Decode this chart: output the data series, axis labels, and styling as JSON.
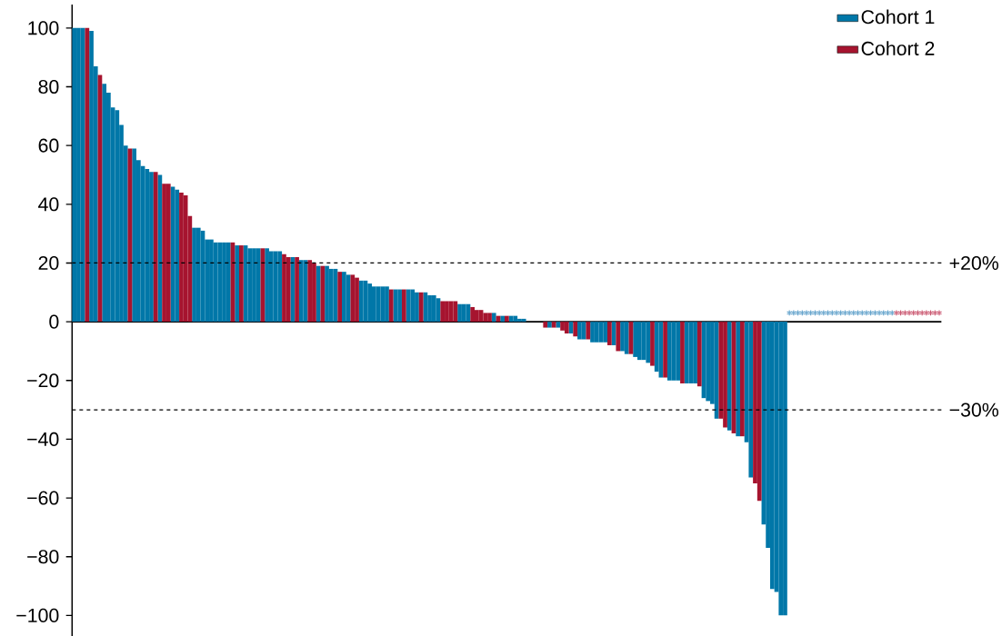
{
  "chart_data": {
    "type": "bar",
    "categories": [
      null,
      null,
      null,
      null,
      null,
      null,
      null,
      null,
      null,
      null,
      null,
      null,
      null,
      null,
      null,
      null,
      null,
      null,
      null,
      null,
      null,
      null,
      null,
      null,
      null,
      null,
      null,
      null,
      null,
      null,
      null,
      null,
      null,
      null,
      null,
      null,
      null,
      null,
      null,
      null,
      null,
      null,
      null,
      null,
      null,
      null,
      null,
      null,
      null,
      null,
      null,
      null,
      null,
      null,
      null,
      null,
      null,
      null,
      null,
      null,
      null,
      null,
      null,
      null,
      null,
      null,
      null,
      null,
      null,
      null,
      null,
      null,
      null,
      null,
      null,
      null,
      null,
      null,
      null,
      null,
      null,
      null,
      null,
      null,
      null,
      null,
      null,
      null,
      null,
      null,
      null,
      null,
      null,
      null,
      null,
      null,
      null,
      null,
      null,
      null,
      null,
      null,
      null,
      null,
      null,
      null,
      null,
      null,
      null,
      null,
      null,
      null,
      null,
      null,
      null,
      null,
      null,
      null,
      null,
      null,
      null,
      null,
      null,
      null,
      null,
      null,
      null,
      null,
      null,
      null,
      null,
      null,
      null,
      null,
      null,
      null,
      null,
      null,
      null,
      null,
      null,
      null,
      null,
      null,
      null,
      null,
      null,
      null,
      null,
      null,
      null,
      null,
      null,
      null,
      null,
      null,
      null,
      null,
      null,
      null,
      null,
      null,
      null,
      null,
      null,
      null,
      null,
      null,
      null,
      null,
      null,
      null,
      null,
      null,
      null,
      null,
      null,
      null,
      null,
      null,
      null,
      null,
      null,
      null,
      null,
      null,
      null,
      null,
      null,
      null,
      null,
      null,
      null,
      null,
      null,
      null,
      null,
      null,
      null,
      null,
      null,
      null,
      null
    ],
    "series": [
      {
        "name": "Cohort 1",
        "color": "#0077a8",
        "values": [
          100,
          100,
          100,
          null,
          99,
          87,
          null,
          81,
          78,
          73,
          72,
          67,
          60,
          null,
          59,
          55,
          53,
          52,
          51,
          null,
          50,
          null,
          null,
          46,
          45,
          null,
          null,
          null,
          32,
          32,
          31,
          28,
          28,
          27,
          27,
          27,
          27,
          null,
          26,
          null,
          26,
          25,
          25,
          25,
          null,
          25,
          24,
          24,
          24,
          null,
          null,
          22,
          null,
          21,
          21,
          null,
          null,
          19,
          null,
          19,
          18,
          18,
          null,
          17,
          16,
          null,
          null,
          14,
          14,
          13,
          12,
          12,
          12,
          12,
          null,
          11,
          11,
          null,
          11,
          11,
          10,
          null,
          10,
          9,
          9,
          8,
          null,
          null,
          null,
          null,
          6,
          6,
          6,
          null,
          null,
          null,
          null,
          null,
          3,
          null,
          2,
          null,
          2,
          2,
          1,
          1,
          0,
          0,
          0,
          0,
          null,
          -2,
          null,
          -2,
          null,
          null,
          -4,
          null,
          -6,
          -6,
          null,
          -7,
          -7,
          -7,
          -7,
          null,
          -8,
          null,
          -10,
          -11,
          null,
          -12,
          -13,
          -13,
          -14,
          null,
          -17,
          -19,
          null,
          -20,
          -20,
          -20,
          null,
          -21,
          -21,
          -21,
          null,
          -26,
          -27,
          -28,
          -33,
          null,
          null,
          -37,
          null,
          -39,
          null,
          -41,
          -53,
          null,
          null,
          -69,
          -77,
          -91,
          -92,
          -100,
          -100,
          null,
          null,
          null,
          null,
          null,
          null,
          null,
          null,
          null,
          null,
          null,
          null,
          null,
          null,
          null,
          null,
          null,
          null,
          null,
          null,
          null,
          null,
          null,
          null,
          null,
          null,
          null,
          null,
          null,
          null,
          null,
          null,
          null,
          null,
          null,
          null
        ]
      },
      {
        "name": "Cohort 2",
        "color": "#a6142f",
        "values": [
          null,
          null,
          null,
          100,
          null,
          null,
          84,
          null,
          null,
          null,
          null,
          null,
          null,
          59,
          null,
          null,
          null,
          null,
          null,
          51,
          null,
          47,
          47,
          null,
          null,
          44,
          43,
          36,
          null,
          null,
          null,
          null,
          null,
          null,
          null,
          null,
          null,
          27,
          null,
          26,
          null,
          null,
          null,
          null,
          25,
          null,
          null,
          null,
          null,
          23,
          22,
          null,
          22,
          null,
          null,
          21,
          20,
          null,
          19,
          null,
          null,
          null,
          17,
          null,
          null,
          16,
          15,
          null,
          null,
          null,
          null,
          null,
          null,
          null,
          11,
          null,
          null,
          11,
          null,
          null,
          null,
          10,
          null,
          null,
          null,
          null,
          7,
          7,
          7,
          7,
          null,
          null,
          null,
          5,
          4,
          4,
          3,
          3,
          null,
          2,
          null,
          2,
          null,
          null,
          null,
          null,
          null,
          null,
          null,
          null,
          -2,
          null,
          -2,
          null,
          -3,
          -4,
          null,
          -5,
          null,
          null,
          -6,
          null,
          null,
          null,
          null,
          -8,
          null,
          -10,
          null,
          null,
          -11,
          null,
          null,
          null,
          null,
          -15,
          null,
          null,
          -19,
          null,
          null,
          null,
          -21,
          null,
          null,
          null,
          -22,
          null,
          null,
          null,
          null,
          -33,
          -36,
          null,
          -38,
          null,
          -39,
          null,
          null,
          -55,
          -61,
          null,
          null,
          null,
          null,
          null,
          null,
          null,
          null,
          null,
          null,
          null,
          null,
          null,
          null,
          null,
          null,
          null,
          null,
          null,
          null,
          null,
          null,
          null,
          null,
          null,
          null,
          null,
          null,
          null,
          null,
          null,
          null,
          null,
          null,
          null,
          null,
          null,
          null,
          null,
          null,
          null,
          null
        ]
      },
      {
        "type": "scatter",
        "color": "#5b9ec9",
        "values": [
          null,
          null,
          null,
          null,
          null,
          null,
          null,
          null,
          null,
          null,
          null,
          null,
          null,
          null,
          null,
          null,
          null,
          null,
          null,
          null,
          null,
          null,
          null,
          null,
          null,
          null,
          null,
          null,
          null,
          null,
          null,
          null,
          null,
          null,
          null,
          null,
          null,
          null,
          null,
          null,
          null,
          null,
          null,
          null,
          null,
          null,
          null,
          null,
          null,
          null,
          null,
          null,
          null,
          null,
          null,
          null,
          null,
          null,
          null,
          null,
          null,
          null,
          null,
          null,
          null,
          null,
          null,
          null,
          null,
          null,
          null,
          null,
          null,
          null,
          null,
          null,
          null,
          null,
          null,
          null,
          null,
          null,
          null,
          null,
          null,
          null,
          null,
          null,
          null,
          null,
          null,
          null,
          null,
          null,
          null,
          null,
          null,
          null,
          null,
          null,
          null,
          null,
          null,
          null,
          null,
          null,
          null,
          null,
          null,
          null,
          null,
          null,
          null,
          null,
          null,
          null,
          null,
          null,
          null,
          null,
          null,
          null,
          null,
          null,
          null,
          null,
          null,
          null,
          null,
          null,
          null,
          null,
          null,
          null,
          null,
          null,
          null,
          null,
          null,
          null,
          null,
          null,
          null,
          null,
          null,
          null,
          null,
          null,
          null,
          null,
          null,
          null,
          null,
          null,
          null,
          null,
          null,
          null,
          null,
          null,
          null,
          null,
          null,
          null,
          null,
          null,
          null,
          3,
          3,
          3,
          3,
          3,
          3,
          3,
          3,
          3,
          3,
          3,
          3,
          3,
          3,
          3,
          3,
          3,
          3,
          3,
          3,
          3,
          3,
          3,
          3,
          3,
          null,
          null,
          null,
          null,
          null,
          null,
          null,
          null,
          null,
          null,
          null
        ]
      },
      {
        "type": "scatter",
        "color": "#c8506a",
        "values": [
          null,
          null,
          null,
          null,
          null,
          null,
          null,
          null,
          null,
          null,
          null,
          null,
          null,
          null,
          null,
          null,
          null,
          null,
          null,
          null,
          null,
          null,
          null,
          null,
          null,
          null,
          null,
          null,
          null,
          null,
          null,
          null,
          null,
          null,
          null,
          null,
          null,
          null,
          null,
          null,
          null,
          null,
          null,
          null,
          null,
          null,
          null,
          null,
          null,
          null,
          null,
          null,
          null,
          null,
          null,
          null,
          null,
          null,
          null,
          null,
          null,
          null,
          null,
          null,
          null,
          null,
          null,
          null,
          null,
          null,
          null,
          null,
          null,
          null,
          null,
          null,
          null,
          null,
          null,
          null,
          null,
          null,
          null,
          null,
          null,
          null,
          null,
          null,
          null,
          null,
          null,
          null,
          null,
          null,
          null,
          null,
          null,
          null,
          null,
          null,
          null,
          null,
          null,
          null,
          null,
          null,
          null,
          null,
          null,
          null,
          null,
          null,
          null,
          null,
          null,
          null,
          null,
          null,
          null,
          null,
          null,
          null,
          null,
          null,
          null,
          null,
          null,
          null,
          null,
          null,
          null,
          null,
          null,
          null,
          null,
          null,
          null,
          null,
          null,
          null,
          null,
          null,
          null,
          null,
          null,
          null,
          null,
          null,
          null,
          null,
          null,
          null,
          null,
          null,
          null,
          null,
          null,
          null,
          null,
          null,
          null,
          null,
          null,
          null,
          null,
          null,
          null,
          null,
          null,
          null,
          null,
          null,
          null,
          null,
          null,
          null,
          null,
          null,
          null,
          null,
          null,
          null,
          null,
          null,
          null,
          null,
          null,
          null,
          null,
          null,
          null,
          null,
          3,
          3,
          3,
          3,
          3,
          3,
          3,
          3,
          3,
          3,
          3
        ]
      }
    ],
    "ylim": [
      -107,
      108
    ],
    "yticks": [
      {
        "value": -100,
        "label": "−100"
      },
      {
        "value": -80,
        "label": "−80"
      },
      {
        "value": -60,
        "label": "−60"
      },
      {
        "value": -40,
        "label": "−40"
      },
      {
        "value": -20,
        "label": "−20"
      },
      0,
      20,
      40,
      60,
      80,
      100
    ],
    "tick_labels": "y",
    "marker": "cross",
    "legend": "top right",
    "ref_lines": [
      {
        "axis": "y",
        "value": 20,
        "label": "+20%",
        "color": "#000000",
        "line_style": "dashed"
      },
      {
        "axis": "y",
        "value": -30,
        "label": "−30%",
        "color": "#000000",
        "line_style": "dashed"
      }
    ]
  }
}
